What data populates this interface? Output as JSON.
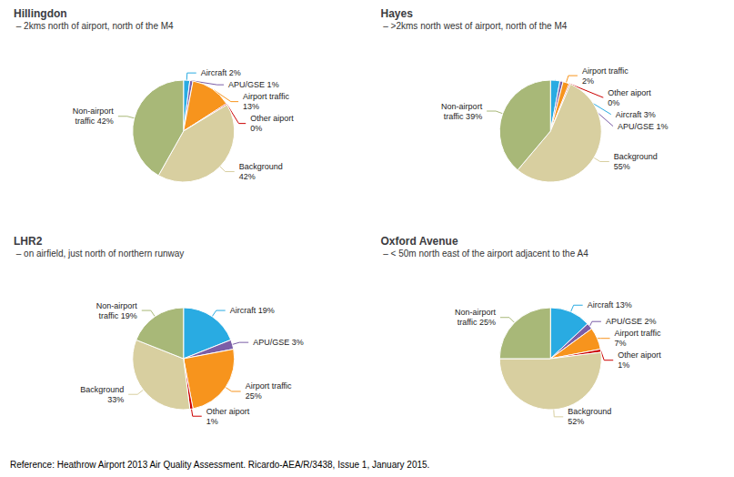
{
  "chart_data": [
    {
      "type": "pie",
      "title": "Hillingdon",
      "subtitle": " – 2kms north of airport, north of the M4",
      "categories": [
        "Aircraft 2%",
        "APU/GSE 1%",
        "Airport traffic\n13%",
        "Other aiport\n0%",
        "Background\n42%",
        "Non-airport\ntraffic 42%"
      ],
      "values": [
        2,
        1,
        13,
        0.4,
        42,
        42
      ],
      "colors": [
        "#29ABE2",
        "#7B5EA7",
        "#F7941D",
        "#CC0000",
        "#D8CFA0",
        "#A8B878"
      ]
    },
    {
      "type": "pie",
      "title": "Hayes",
      "subtitle": " – >2kms north west of airport, north of the M4",
      "categories": [
        "Aircraft 3%",
        "APU/GSE 1%",
        "Airport traffic\n2%",
        "Other aiport\n0%",
        "Background\n55%",
        "Non-airport\ntraffic 39%"
      ],
      "values": [
        3,
        1,
        2,
        0.4,
        55,
        39
      ],
      "colors": [
        "#29ABE2",
        "#7B5EA7",
        "#F7941D",
        "#CC0000",
        "#D8CFA0",
        "#A8B878"
      ]
    },
    {
      "type": "pie",
      "title": "LHR2",
      "subtitle": " – on airfield, just north of northern runway",
      "categories": [
        "Aircraft 19%",
        "APU/GSE 3%",
        "Airport traffic\n25%",
        "Other aiport\n1%",
        "Background\n33%",
        "Non-airport\ntraffic 19%"
      ],
      "values": [
        19,
        3,
        25,
        1,
        33,
        19
      ],
      "colors": [
        "#29ABE2",
        "#7B5EA7",
        "#F7941D",
        "#CC0000",
        "#D8CFA0",
        "#A8B878"
      ]
    },
    {
      "type": "pie",
      "title": "Oxford Avenue",
      "subtitle": " – < 50m north east of the airport adjacent to the A4",
      "categories": [
        "Aircraft 13%",
        "APU/GSE 2%",
        "Airport traffic\n7%",
        "Other aiport\n1%",
        "Background\n52%",
        "Non-airport\ntraffic 25%"
      ],
      "values": [
        13,
        2,
        7,
        1,
        52,
        25
      ],
      "colors": [
        "#29ABE2",
        "#7B5EA7",
        "#F7941D",
        "#CC0000",
        "#D8CFA0",
        "#A8B878"
      ],
      "annotation": "Reference: Heathrow Airport 2013 Air Quality Assessment. Ricardo-AEA/R/3438, Issue 1, January 2015."
    }
  ]
}
